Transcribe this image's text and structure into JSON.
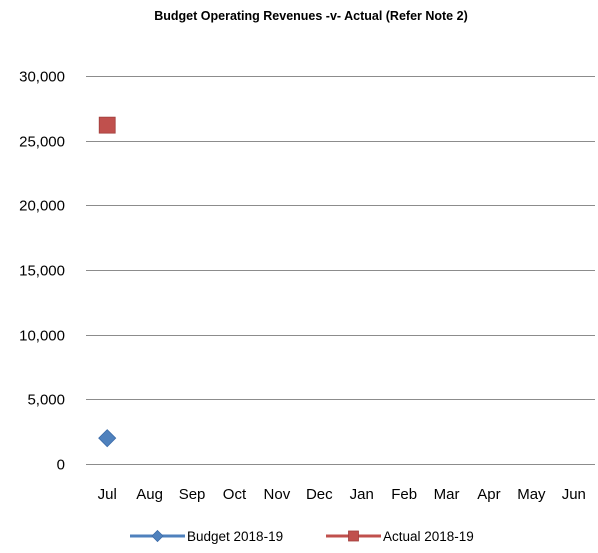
{
  "chart_data": {
    "type": "line",
    "title": "Budget Operating Revenues -v- Actual (Refer Note 2)",
    "xlabel": "",
    "ylabel": "",
    "categories": [
      "Jul",
      "Aug",
      "Sep",
      "Oct",
      "Nov",
      "Dec",
      "Jan",
      "Feb",
      "Mar",
      "Apr",
      "May",
      "Jun"
    ],
    "ylim": [
      0,
      30000
    ],
    "yticks": [
      0,
      5000,
      10000,
      15000,
      20000,
      25000,
      30000
    ],
    "ytick_labels": [
      "0",
      "5,000",
      "10,000",
      "15,000",
      "20,000",
      "25,000",
      "30,000"
    ],
    "grid": true,
    "legend_position": "bottom",
    "series": [
      {
        "name": "Budget 2018-19",
        "color": "#4f81bd",
        "marker": "diamond",
        "values": [
          2000,
          null,
          null,
          null,
          null,
          null,
          null,
          null,
          null,
          null,
          null,
          null
        ]
      },
      {
        "name": "Actual 2018-19",
        "color": "#c0504d",
        "marker": "square",
        "values": [
          26200,
          null,
          null,
          null,
          null,
          null,
          null,
          null,
          null,
          null,
          null,
          null
        ]
      }
    ]
  }
}
